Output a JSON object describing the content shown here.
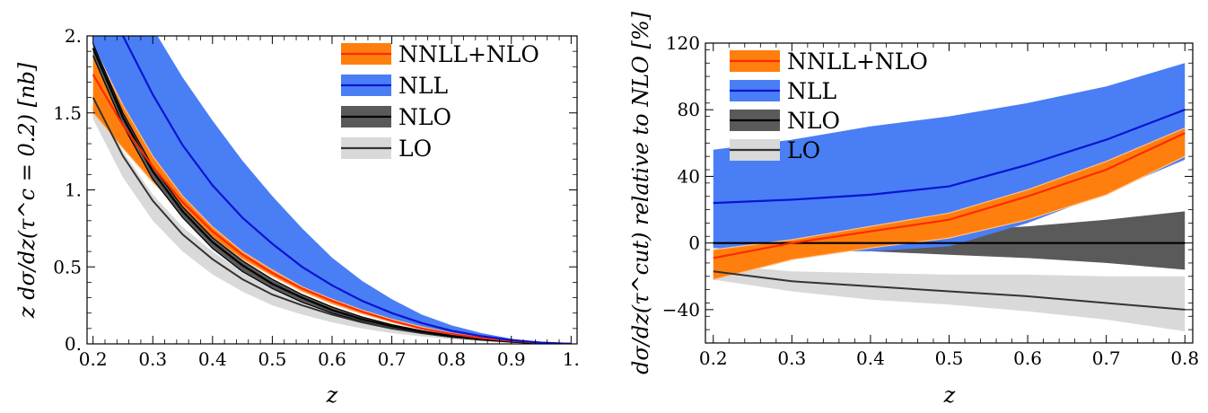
{
  "colors": {
    "nnll_band": "#ff7f0e",
    "nnll_line": "#ff2a00",
    "nll_band": "#4a7ef5",
    "nll_line": "#0a14d2",
    "nlo_band": "#5a5a5a",
    "nlo_line": "#000000",
    "lo_band": "#d9d9d9",
    "lo_line": "#333333",
    "inner_band_edge": "#ffc08a"
  },
  "chart_data": [
    {
      "id": "left",
      "type": "line",
      "xlabel": "z",
      "ylabel": "z dσ/dz(τ^c = 0.2) [nb]",
      "xlim": [
        0.19,
        1.01
      ],
      "ylim": [
        0,
        2.0
      ],
      "xticks": [
        0.2,
        0.3,
        0.4,
        0.5,
        0.6,
        0.7,
        0.8,
        0.9,
        1.0
      ],
      "xticklabels": [
        "0.2",
        "0.3",
        "0.4",
        "0.5",
        "0.6",
        "0.7",
        "0.8",
        "0.9",
        "1."
      ],
      "yticks": [
        0,
        0.5,
        1.0,
        1.5,
        2.0
      ],
      "yticklabels": [
        "0.",
        "0.5",
        "1.",
        "1.5",
        "2."
      ],
      "grid": false,
      "legend_position": "top-right",
      "x": [
        0.2,
        0.25,
        0.3,
        0.35,
        0.4,
        0.45,
        0.5,
        0.55,
        0.6,
        0.65,
        0.7,
        0.75,
        0.8,
        0.85,
        0.9,
        0.95,
        1.0
      ],
      "series": [
        {
          "name": "LO",
          "key": "lo",
          "central": [
            1.6,
            1.22,
            0.93,
            0.71,
            0.55,
            0.42,
            0.32,
            0.25,
            0.19,
            0.14,
            0.1,
            0.07,
            0.045,
            0.027,
            0.013,
            0.004,
            0.0
          ],
          "lower": [
            1.46,
            1.08,
            0.8,
            0.6,
            0.45,
            0.34,
            0.25,
            0.19,
            0.14,
            0.1,
            0.07,
            0.048,
            0.03,
            0.017,
            0.008,
            0.002,
            0.0
          ],
          "upper": [
            1.6,
            1.25,
            0.97,
            0.76,
            0.6,
            0.47,
            0.37,
            0.28,
            0.21,
            0.16,
            0.12,
            0.08,
            0.05,
            0.03,
            0.015,
            0.005,
            0.0
          ]
        },
        {
          "name": "NLO",
          "key": "nlo",
          "central": [
            1.92,
            1.47,
            1.12,
            0.86,
            0.66,
            0.51,
            0.39,
            0.3,
            0.22,
            0.16,
            0.115,
            0.078,
            0.05,
            0.03,
            0.015,
            0.005,
            0.0
          ],
          "lower": [
            1.87,
            1.42,
            1.07,
            0.82,
            0.62,
            0.47,
            0.36,
            0.27,
            0.2,
            0.145,
            0.1,
            0.068,
            0.043,
            0.025,
            0.012,
            0.004,
            0.0
          ],
          "upper": [
            1.95,
            1.5,
            1.15,
            0.89,
            0.69,
            0.54,
            0.42,
            0.32,
            0.24,
            0.175,
            0.125,
            0.085,
            0.055,
            0.033,
            0.017,
            0.006,
            0.0
          ]
        },
        {
          "name": "NNLL+NLO",
          "key": "nnll",
          "central": [
            1.75,
            1.42,
            1.15,
            0.92,
            0.73,
            0.58,
            0.46,
            0.36,
            0.28,
            0.21,
            0.15,
            0.1,
            0.065,
            0.038,
            0.019,
            0.007,
            0.0
          ],
          "lower": [
            1.5,
            1.27,
            1.05,
            0.86,
            0.69,
            0.55,
            0.44,
            0.34,
            0.26,
            0.195,
            0.14,
            0.095,
            0.06,
            0.035,
            0.017,
            0.006,
            0.0
          ],
          "upper": [
            1.93,
            1.55,
            1.22,
            0.96,
            0.76,
            0.6,
            0.48,
            0.37,
            0.29,
            0.22,
            0.16,
            0.11,
            0.07,
            0.041,
            0.021,
            0.008,
            0.0
          ]
        },
        {
          "name": "NLL",
          "key": "nll",
          "central": [
            2.25,
            2.0,
            1.62,
            1.29,
            1.03,
            0.82,
            0.65,
            0.5,
            0.38,
            0.28,
            0.2,
            0.135,
            0.085,
            0.05,
            0.024,
            0.008,
            0.0
          ],
          "lower": [
            1.95,
            1.55,
            1.2,
            0.95,
            0.76,
            0.6,
            0.48,
            0.37,
            0.29,
            0.215,
            0.155,
            0.105,
            0.068,
            0.04,
            0.02,
            0.007,
            0.0
          ],
          "upper": [
            2.6,
            2.35,
            2.05,
            1.73,
            1.45,
            1.19,
            0.96,
            0.75,
            0.56,
            0.41,
            0.29,
            0.19,
            0.12,
            0.07,
            0.033,
            0.011,
            0.0
          ]
        }
      ]
    },
    {
      "id": "right",
      "type": "line",
      "xlabel": "z",
      "ylabel": "dσ/dz(τ^cut) relative to NLO [%]",
      "xlim": [
        0.19,
        0.81
      ],
      "ylim": [
        -60,
        120
      ],
      "xticks": [
        0.2,
        0.3,
        0.4,
        0.5,
        0.6,
        0.7,
        0.8
      ],
      "xticklabels": [
        "0.2",
        "0.3",
        "0.4",
        "0.5",
        "0.6",
        "0.7",
        "0.8"
      ],
      "yticks": [
        -40,
        0,
        40,
        80,
        120
      ],
      "yticklabels": [
        "−40",
        "0",
        "40",
        "80",
        "120"
      ],
      "grid": false,
      "legend_position": "top-left",
      "x": [
        0.2,
        0.3,
        0.4,
        0.5,
        0.6,
        0.7,
        0.8
      ],
      "series": [
        {
          "name": "LO",
          "key": "lo",
          "central": [
            -17,
            -23,
            -26,
            -29,
            -32,
            -36,
            -40
          ],
          "lower": [
            -22,
            -29,
            -34,
            -37,
            -41,
            -46,
            -53
          ],
          "upper": [
            -13,
            -17,
            -18,
            -19,
            -19,
            -20,
            -20
          ]
        },
        {
          "name": "NLO",
          "key": "nlo",
          "central": [
            0,
            0,
            0,
            0,
            0,
            0,
            0
          ],
          "lower": [
            -2,
            -3,
            -5,
            -7,
            -9,
            -12,
            -16
          ],
          "upper": [
            2,
            3,
            5,
            7,
            10,
            14,
            19
          ]
        },
        {
          "name": "NNLL+NLO",
          "key": "nnll",
          "central": [
            -9,
            0,
            7,
            14,
            28,
            44,
            66
          ],
          "lower": [
            -22,
            -10,
            -3,
            3,
            14,
            29,
            52
          ],
          "upper": [
            -4,
            2,
            10,
            18,
            32,
            49,
            69
          ]
        },
        {
          "name": "NLL",
          "key": "nll",
          "central": [
            24,
            26,
            29,
            34,
            47,
            62,
            80
          ],
          "lower": [
            -3,
            -5,
            -5,
            -2,
            12,
            30,
            50
          ],
          "upper": [
            56,
            62,
            70,
            76,
            84,
            94,
            108
          ]
        }
      ]
    }
  ],
  "legends": [
    {
      "items": [
        "NNLL+NLO",
        "NLL",
        "NLO",
        "LO"
      ]
    },
    {
      "items": [
        "NNLL+NLO",
        "NLL",
        "NLO",
        "LO"
      ]
    }
  ]
}
